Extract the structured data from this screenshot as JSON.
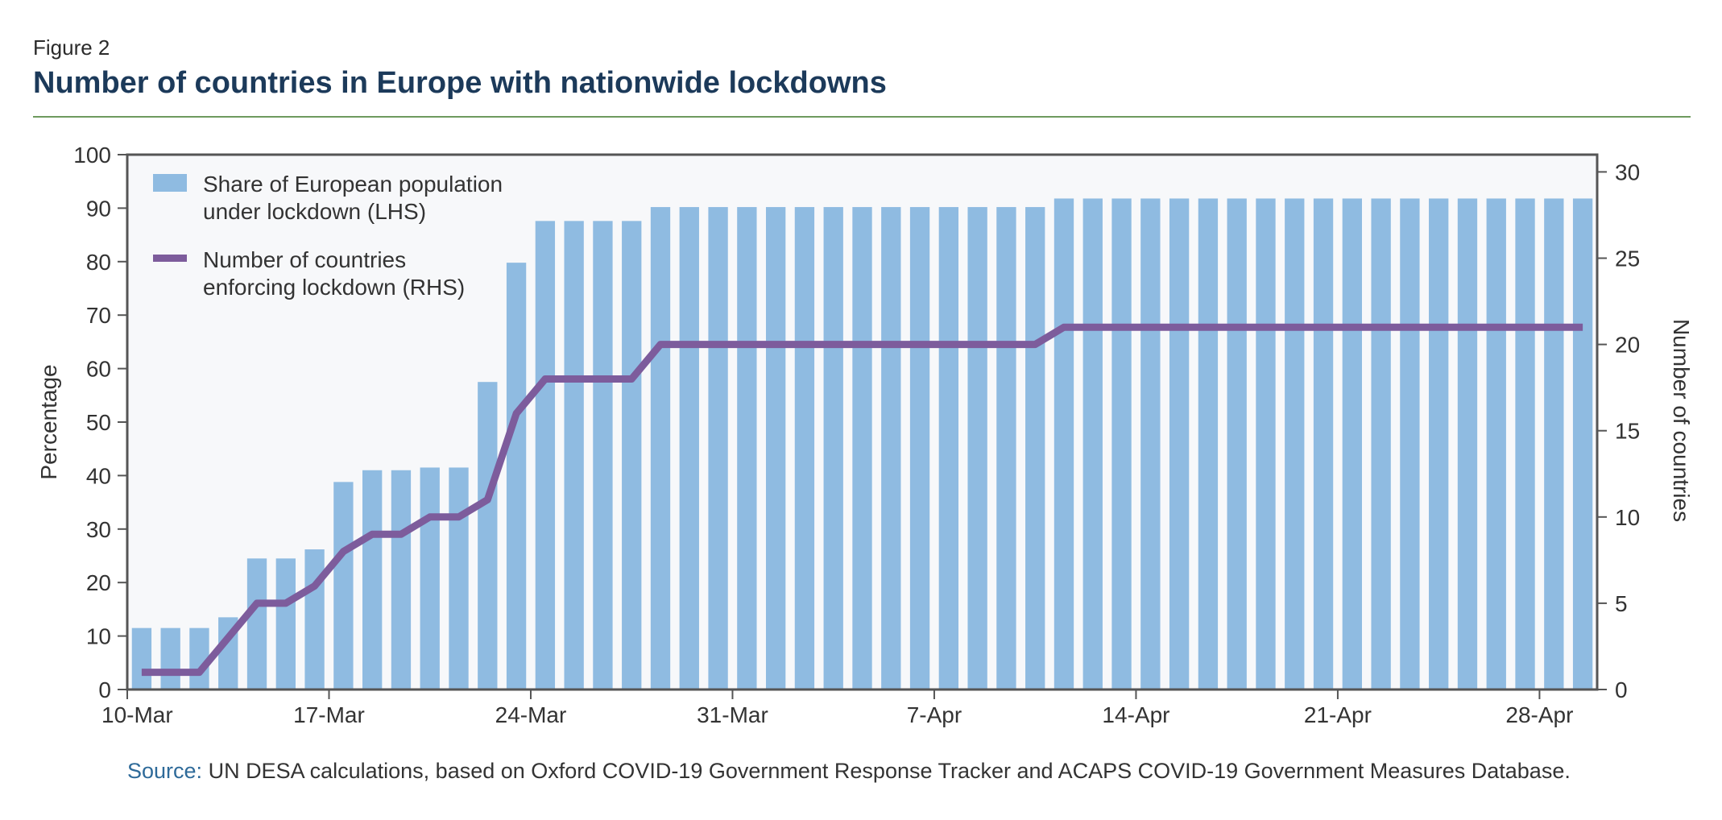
{
  "figure": {
    "label": "Figure 2",
    "title": "Number of countries in Europe with nationwide lockdowns"
  },
  "source": {
    "label": "Source:",
    "text": " UN DESA calculations, based on Oxford COVID-19 Government Response Tracker and ACAPS COVID-19 Government Measures Database."
  },
  "colors": {
    "bar": "#8fbbe1",
    "line": "#7d5c9c",
    "plot_bg": "#f7f8fa",
    "axis": "#555555",
    "text": "#333333"
  },
  "chart_data": {
    "type": "bar",
    "x_tick_labels": [
      "10-Mar",
      "17-Mar",
      "24-Mar",
      "31-Mar",
      "7-Apr",
      "14-Apr",
      "21-Apr",
      "28-Apr"
    ],
    "x_tick_day_index": [
      0,
      7,
      14,
      21,
      28,
      35,
      42,
      49
    ],
    "ylabel": "Percentage",
    "ylim": [
      0,
      100
    ],
    "yticks": [
      0,
      10,
      20,
      30,
      40,
      50,
      60,
      70,
      80,
      90,
      100
    ],
    "y2label": "Number of countries",
    "y2lim": [
      0,
      31
    ],
    "y2ticks": [
      0,
      5,
      10,
      15,
      20,
      25,
      30
    ],
    "legend_placement": "top-left",
    "grid": false,
    "series": [
      {
        "name": "Share of European population under lockdown (LHS)",
        "axis": "left",
        "kind": "bar",
        "values": [
          11.5,
          11.5,
          11.5,
          13.5,
          24.5,
          24.5,
          26.2,
          38.8,
          41,
          41,
          41.5,
          41.5,
          57.5,
          79.8,
          87.6,
          87.6,
          87.6,
          87.6,
          90.2,
          90.2,
          90.2,
          90.2,
          90.2,
          90.2,
          90.2,
          90.2,
          90.2,
          90.2,
          90.2,
          90.2,
          90.2,
          90.2,
          91.8,
          91.8,
          91.8,
          91.8,
          91.8,
          91.8,
          91.8,
          91.8,
          91.8,
          91.8,
          91.8,
          91.8,
          91.8,
          91.8,
          91.8,
          91.8,
          91.8,
          91.8,
          91.8
        ]
      },
      {
        "name": "Number of countries enforcing lockdown (RHS)",
        "axis": "right",
        "kind": "line",
        "values": [
          1,
          1,
          1,
          3,
          5,
          5,
          6,
          8,
          9,
          9,
          10,
          10,
          11,
          16,
          18,
          18,
          18,
          18,
          20,
          20,
          20,
          20,
          20,
          20,
          20,
          20,
          20,
          20,
          20,
          20,
          20,
          20,
          21,
          21,
          21,
          21,
          21,
          21,
          21,
          21,
          21,
          21,
          21,
          21,
          21,
          21,
          21,
          21,
          21,
          21,
          21
        ]
      }
    ]
  }
}
